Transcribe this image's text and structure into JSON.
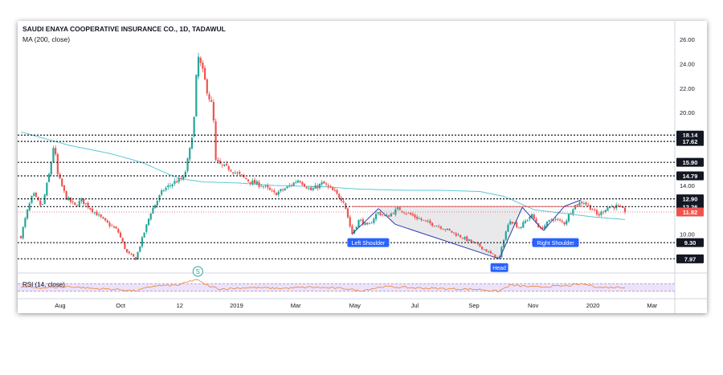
{
  "header": {
    "symbol_title": "SAUDI ENAYA COOPERATIVE INSURANCE CO., 1D, TADAWUL",
    "ma_label": "MA (200, close)"
  },
  "rsi": {
    "label": "RSI (14, close)"
  },
  "chart_data": {
    "type": "candlestick",
    "y_axis": {
      "ticks": [
        {
          "value": 26,
          "label": "26.00"
        },
        {
          "value": 24,
          "label": "24.00"
        },
        {
          "value": 22,
          "label": "22.00"
        },
        {
          "value": 20,
          "label": "20.00"
        },
        {
          "value": 14,
          "label": "14.00"
        },
        {
          "value": 10,
          "label": "10.00"
        }
      ],
      "range": [
        7.2,
        27.0
      ],
      "scale": "linear"
    },
    "x_axis": {
      "ticks": [
        {
          "t": 0.065,
          "label": "Aug"
        },
        {
          "t": 0.165,
          "label": "Oct"
        },
        {
          "t": 0.263,
          "label": "12"
        },
        {
          "t": 0.357,
          "label": "2019"
        },
        {
          "t": 0.455,
          "label": "Mar"
        },
        {
          "t": 0.553,
          "label": "May"
        },
        {
          "t": 0.652,
          "label": "Jul"
        },
        {
          "t": 0.75,
          "label": "Sep"
        },
        {
          "t": 0.848,
          "label": "Nov"
        },
        {
          "t": 0.947,
          "label": "2020"
        },
        {
          "t": 1.045,
          "label": "Mar"
        }
      ]
    },
    "levels": [
      {
        "value": 18.14,
        "label": "18.14"
      },
      {
        "value": 17.62,
        "label": "17.62"
      },
      {
        "value": 15.9,
        "label": "15.90"
      },
      {
        "value": 14.79,
        "label": "14.79"
      },
      {
        "value": 12.9,
        "label": "12.90"
      },
      {
        "value": 12.26,
        "label": "12.26"
      },
      {
        "value": 9.3,
        "label": "9.30"
      },
      {
        "value": 7.97,
        "label": "7.97"
      }
    ],
    "last_price": {
      "value": 11.82,
      "label": "11.82"
    },
    "annotations": [
      {
        "label": "Left Shoulder"
      },
      {
        "label": "Head"
      },
      {
        "label": "Right Shoulder"
      }
    ],
    "marker": {
      "label": "S"
    },
    "ohlc_keypoints": [
      {
        "t": 0.0,
        "v": 9.8
      },
      {
        "t": 0.01,
        "v": 11.8
      },
      {
        "t": 0.02,
        "v": 13.3
      },
      {
        "t": 0.035,
        "v": 12.2
      },
      {
        "t": 0.048,
        "v": 15.2
      },
      {
        "t": 0.055,
        "v": 17.6
      },
      {
        "t": 0.06,
        "v": 15.0
      },
      {
        "t": 0.075,
        "v": 13.0
      },
      {
        "t": 0.09,
        "v": 12.3
      },
      {
        "t": 0.1,
        "v": 12.8
      },
      {
        "t": 0.12,
        "v": 11.9
      },
      {
        "t": 0.14,
        "v": 11.0
      },
      {
        "t": 0.16,
        "v": 10.3
      },
      {
        "t": 0.175,
        "v": 8.5
      },
      {
        "t": 0.19,
        "v": 7.97
      },
      {
        "t": 0.2,
        "v": 9.5
      },
      {
        "t": 0.215,
        "v": 11.8
      },
      {
        "t": 0.235,
        "v": 13.6
      },
      {
        "t": 0.255,
        "v": 14.3
      },
      {
        "t": 0.27,
        "v": 14.6
      },
      {
        "t": 0.28,
        "v": 17.0
      },
      {
        "t": 0.288,
        "v": 20.0
      },
      {
        "t": 0.292,
        "v": 24.8
      },
      {
        "t": 0.3,
        "v": 23.5
      },
      {
        "t": 0.31,
        "v": 21.5
      },
      {
        "t": 0.318,
        "v": 20.3
      },
      {
        "t": 0.322,
        "v": 16.0
      },
      {
        "t": 0.332,
        "v": 15.6
      },
      {
        "t": 0.345,
        "v": 15.4
      },
      {
        "t": 0.36,
        "v": 14.9
      },
      {
        "t": 0.38,
        "v": 14.3
      },
      {
        "t": 0.4,
        "v": 14.0
      },
      {
        "t": 0.42,
        "v": 13.3
      },
      {
        "t": 0.44,
        "v": 13.8
      },
      {
        "t": 0.46,
        "v": 14.5
      },
      {
        "t": 0.48,
        "v": 13.6
      },
      {
        "t": 0.5,
        "v": 14.2
      },
      {
        "t": 0.52,
        "v": 13.4
      },
      {
        "t": 0.535,
        "v": 12.7
      },
      {
        "t": 0.548,
        "v": 10.0
      },
      {
        "t": 0.56,
        "v": 11.2
      },
      {
        "t": 0.575,
        "v": 10.6
      },
      {
        "t": 0.59,
        "v": 11.8
      },
      {
        "t": 0.605,
        "v": 11.4
      },
      {
        "t": 0.625,
        "v": 12.1
      },
      {
        "t": 0.645,
        "v": 11.6
      },
      {
        "t": 0.67,
        "v": 11.0
      },
      {
        "t": 0.695,
        "v": 10.6
      },
      {
        "t": 0.72,
        "v": 10.0
      },
      {
        "t": 0.74,
        "v": 9.5
      },
      {
        "t": 0.76,
        "v": 9.0
      },
      {
        "t": 0.78,
        "v": 8.3
      },
      {
        "t": 0.792,
        "v": 8.0
      },
      {
        "t": 0.8,
        "v": 9.8
      },
      {
        "t": 0.81,
        "v": 11.2
      },
      {
        "t": 0.825,
        "v": 10.5
      },
      {
        "t": 0.845,
        "v": 11.6
      },
      {
        "t": 0.86,
        "v": 10.4
      },
      {
        "t": 0.88,
        "v": 11.3
      },
      {
        "t": 0.9,
        "v": 10.9
      },
      {
        "t": 0.915,
        "v": 12.3
      },
      {
        "t": 0.93,
        "v": 12.7
      },
      {
        "t": 0.945,
        "v": 12.1
      },
      {
        "t": 0.955,
        "v": 11.5
      },
      {
        "t": 0.97,
        "v": 12.2
      },
      {
        "t": 0.985,
        "v": 12.3
      },
      {
        "t": 1.0,
        "v": 11.9
      }
    ],
    "ma200_keypoints": [
      {
        "t": 0.0,
        "v": 18.4
      },
      {
        "t": 0.08,
        "v": 17.3
      },
      {
        "t": 0.15,
        "v": 16.6
      },
      {
        "t": 0.2,
        "v": 15.9
      },
      {
        "t": 0.26,
        "v": 14.6
      },
      {
        "t": 0.3,
        "v": 14.3
      },
      {
        "t": 0.36,
        "v": 14.2
      },
      {
        "t": 0.42,
        "v": 14.0
      },
      {
        "t": 0.5,
        "v": 13.9
      },
      {
        "t": 0.56,
        "v": 13.7
      },
      {
        "t": 0.64,
        "v": 13.6
      },
      {
        "t": 0.7,
        "v": 13.6
      },
      {
        "t": 0.76,
        "v": 13.5
      },
      {
        "t": 0.8,
        "v": 13.1
      },
      {
        "t": 0.85,
        "v": 12.0
      },
      {
        "t": 0.9,
        "v": 11.7
      },
      {
        "t": 0.95,
        "v": 11.4
      },
      {
        "t": 1.0,
        "v": 11.2
      }
    ],
    "pattern_lines": [
      {
        "from": {
          "t": 0.548,
          "v": 10.0
        },
        "to": {
          "t": 0.592,
          "v": 12.1
        }
      },
      {
        "from": {
          "t": 0.592,
          "v": 12.1
        },
        "to": {
          "t": 0.62,
          "v": 10.8
        }
      },
      {
        "from": {
          "t": 0.62,
          "v": 10.8
        },
        "to": {
          "t": 0.792,
          "v": 7.97
        }
      },
      {
        "from": {
          "t": 0.792,
          "v": 7.97
        },
        "to": {
          "t": 0.83,
          "v": 12.2
        }
      },
      {
        "from": {
          "t": 0.83,
          "v": 12.2
        },
        "to": {
          "t": 0.865,
          "v": 10.3
        }
      },
      {
        "from": {
          "t": 0.865,
          "v": 10.3
        },
        "to": {
          "t": 0.9,
          "v": 12.3
        }
      },
      {
        "from": {
          "t": 0.9,
          "v": 12.3
        },
        "to": {
          "t": 0.927,
          "v": 12.8
        }
      }
    ],
    "neckline": {
      "from": {
        "t": 0.548,
        "v": 12.26
      },
      "to": {
        "t": 0.93,
        "v": 12.26
      }
    },
    "rsi_range": [
      0,
      100
    ],
    "rsi_bands": [
      70,
      30
    ],
    "rsi_keypoints": [
      {
        "t": 0.0,
        "v": 52
      },
      {
        "t": 0.04,
        "v": 48
      },
      {
        "t": 0.08,
        "v": 55
      },
      {
        "t": 0.12,
        "v": 45
      },
      {
        "t": 0.16,
        "v": 40
      },
      {
        "t": 0.19,
        "v": 32
      },
      {
        "t": 0.22,
        "v": 58
      },
      {
        "t": 0.26,
        "v": 62
      },
      {
        "t": 0.29,
        "v": 92
      },
      {
        "t": 0.31,
        "v": 58
      },
      {
        "t": 0.33,
        "v": 42
      },
      {
        "t": 0.38,
        "v": 50
      },
      {
        "t": 0.43,
        "v": 45
      },
      {
        "t": 0.48,
        "v": 52
      },
      {
        "t": 0.54,
        "v": 44
      },
      {
        "t": 0.56,
        "v": 32
      },
      {
        "t": 0.6,
        "v": 55
      },
      {
        "t": 0.65,
        "v": 48
      },
      {
        "t": 0.7,
        "v": 44
      },
      {
        "t": 0.76,
        "v": 40
      },
      {
        "t": 0.79,
        "v": 30
      },
      {
        "t": 0.81,
        "v": 62
      },
      {
        "t": 0.85,
        "v": 52
      },
      {
        "t": 0.9,
        "v": 58
      },
      {
        "t": 0.93,
        "v": 68
      },
      {
        "t": 0.96,
        "v": 50
      },
      {
        "t": 1.0,
        "v": 52
      }
    ],
    "colors": {
      "up": "#26a69a",
      "down": "#ef5350",
      "ma": "#5bc8d4",
      "pattern": "#2f3ea8",
      "label_bg": "#2962ff",
      "last_price_bg": "#ef5350",
      "level_bg": "#131722",
      "rsi_line": "#f0832a",
      "rsi_band_fill": "#ece3fa",
      "rsi_band_line": "#9575cd",
      "head_fill": "#e9e9ec",
      "neckline": "#e57373"
    }
  }
}
